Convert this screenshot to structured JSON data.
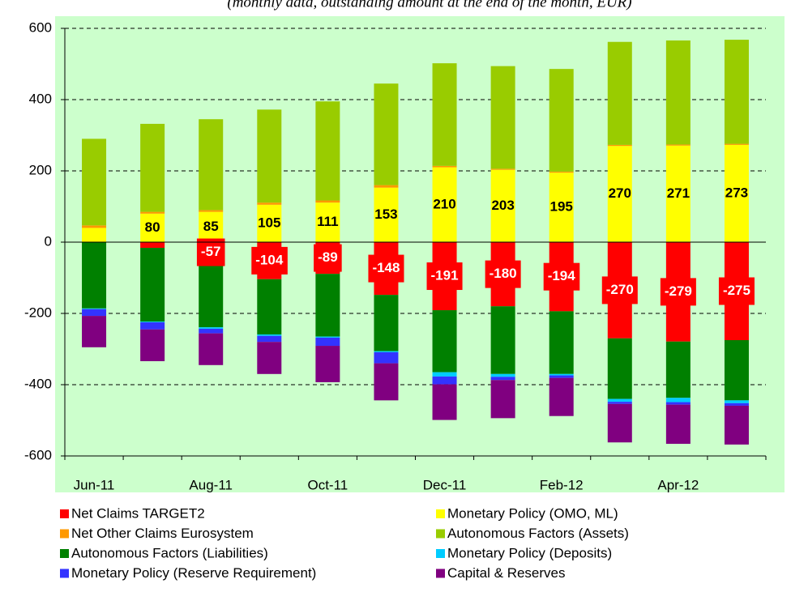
{
  "chart_data": {
    "type": "stacked_bar",
    "subtitle": "(monthly data, outstanding amount at the end of the month, EUR)",
    "categories": [
      "Jun-11",
      null,
      "Aug-11",
      null,
      "Oct-11",
      null,
      "Dec-11",
      null,
      "Feb-12",
      null,
      "Apr-12",
      null
    ],
    "ylim": [
      -600,
      600
    ],
    "yticks": [
      -600,
      -400,
      -200,
      0,
      200,
      400,
      600
    ],
    "grid": true,
    "legend": "bottom",
    "background": "#ccffcc",
    "series": [
      {
        "name": "Net Claims TARGET2",
        "color": "#ff0000",
        "values": [
          0,
          -16,
          -57,
          -104,
          -89,
          -148,
          -191,
          -180,
          -194,
          -270,
          -279,
          -275
        ],
        "value_labels": [
          null,
          null,
          "-57",
          "-104",
          "-89",
          "-148",
          "-191",
          "-180",
          "-194",
          "-270",
          "-279",
          "-275"
        ]
      },
      {
        "name": "Monetary Policy (OMO, ML)",
        "color": "#ffff00",
        "values": [
          40,
          80,
          85,
          105,
          111,
          153,
          210,
          203,
          195,
          270,
          271,
          273
        ],
        "value_labels": [
          null,
          "80",
          "85",
          "105",
          "111",
          "153",
          "210",
          "203",
          "195",
          "270",
          "271",
          "273"
        ]
      },
      {
        "name": "Net Other Claims Eurosystem",
        "color": "#ff9900",
        "values": [
          7,
          5,
          5,
          6,
          6,
          7,
          4,
          3,
          3,
          3,
          3,
          3
        ]
      },
      {
        "name": "Autonomous Factors (Assets)",
        "color": "#99cc00",
        "values": [
          243,
          247,
          255,
          261,
          278,
          285,
          288,
          288,
          288,
          289,
          292,
          292
        ]
      },
      {
        "name": "Autonomous Factors (Liabilities)",
        "color": "#008000",
        "values": [
          -186,
          -207,
          -182,
          -155,
          -176,
          -158,
          -174,
          -190,
          -176,
          -170,
          -158,
          -169
        ]
      },
      {
        "name": "Monetary Policy (Deposits)",
        "color": "#00ccff",
        "values": [
          -2,
          -2,
          -4,
          -4,
          -3,
          -3,
          -12,
          -8,
          -4,
          -8,
          -12,
          -8
        ]
      },
      {
        "name": "Monetary Policy (Reserve Requirement)",
        "color": "#3333ff",
        "values": [
          -19,
          -20,
          -13,
          -17,
          -23,
          -31,
          -22,
          -9,
          -7,
          -6,
          -7,
          -7
        ]
      },
      {
        "name": "Capital & Reserves",
        "color": "#800080",
        "values": [
          -88,
          -89,
          -89,
          -90,
          -102,
          -104,
          -100,
          -107,
          -107,
          -108,
          -110,
          -109
        ]
      }
    ]
  }
}
